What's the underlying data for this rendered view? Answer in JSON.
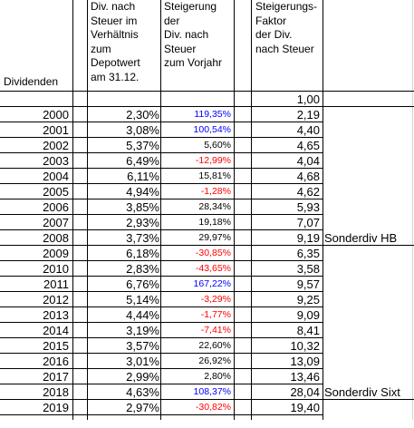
{
  "headers": {
    "dividenden": "Dividenden",
    "col_b": "Div. nach\nSteuer im\nVerhältnis\nzum\nDepotwert\nam 31.12.",
    "col_c": "Steigerung\nder\nDiv. nach\nSteuer\nzum Vorjahr",
    "col_e": "Steigerungs-\nFaktor\nder Div.\nnach Steuer"
  },
  "base_factor": "1,00",
  "colors": {
    "positive": "#0000ff",
    "negative": "#ff0000",
    "text": "#000000"
  },
  "rows": [
    {
      "year": "2000",
      "pct": "2,30%",
      "growth": "119,35%",
      "sign": "pos",
      "factor": "2,19",
      "note": ""
    },
    {
      "year": "2001",
      "pct": "3,08%",
      "growth": "100,54%",
      "sign": "pos",
      "factor": "4,40",
      "note": ""
    },
    {
      "year": "2002",
      "pct": "5,37%",
      "growth": "5,60%",
      "sign": "neutral",
      "factor": "4,65",
      "note": ""
    },
    {
      "year": "2003",
      "pct": "6,49%",
      "growth": "-12,99%",
      "sign": "neg",
      "factor": "4,04",
      "note": ""
    },
    {
      "year": "2004",
      "pct": "6,11%",
      "growth": "15,81%",
      "sign": "neutral",
      "factor": "4,68",
      "note": ""
    },
    {
      "year": "2005",
      "pct": "4,94%",
      "growth": "-1,28%",
      "sign": "neg",
      "factor": "4,62",
      "note": ""
    },
    {
      "year": "2006",
      "pct": "3,85%",
      "growth": "28,34%",
      "sign": "neutral",
      "factor": "5,93",
      "note": ""
    },
    {
      "year": "2007",
      "pct": "2,93%",
      "growth": "19,18%",
      "sign": "neutral",
      "factor": "7,07",
      "note": ""
    },
    {
      "year": "2008",
      "pct": "3,73%",
      "growth": "29,97%",
      "sign": "neutral",
      "factor": "9,19",
      "note": "Sonderdiv HB"
    },
    {
      "year": "2009",
      "pct": "6,18%",
      "growth": "-30,85%",
      "sign": "neg",
      "factor": "6,35",
      "note": ""
    },
    {
      "year": "2010",
      "pct": "2,83%",
      "growth": "-43,65%",
      "sign": "neg",
      "factor": "3,58",
      "note": ""
    },
    {
      "year": "2011",
      "pct": "6,76%",
      "growth": "167,22%",
      "sign": "pos",
      "factor": "9,57",
      "note": ""
    },
    {
      "year": "2012",
      "pct": "5,14%",
      "growth": "-3,29%",
      "sign": "neg",
      "factor": "9,25",
      "note": ""
    },
    {
      "year": "2013",
      "pct": "4,44%",
      "growth": "-1,77%",
      "sign": "neg",
      "factor": "9,09",
      "note": ""
    },
    {
      "year": "2014",
      "pct": "3,19%",
      "growth": "-7,41%",
      "sign": "neg",
      "factor": "8,41",
      "note": ""
    },
    {
      "year": "2015",
      "pct": "3,57%",
      "growth": "22,60%",
      "sign": "neutral",
      "factor": "10,32",
      "note": ""
    },
    {
      "year": "2016",
      "pct": "3,01%",
      "growth": "26,92%",
      "sign": "neutral",
      "factor": "13,09",
      "note": ""
    },
    {
      "year": "2017",
      "pct": "2,99%",
      "growth": "2,80%",
      "sign": "neutral",
      "factor": "13,46",
      "note": ""
    },
    {
      "year": "2018",
      "pct": "4,63%",
      "growth": "108,37%",
      "sign": "pos",
      "factor": "28,04",
      "note": "Sonderdiv Sixt"
    },
    {
      "year": "2019",
      "pct": "2,97%",
      "growth": "-30,82%",
      "sign": "neg",
      "factor": "19,40",
      "note": ""
    }
  ]
}
